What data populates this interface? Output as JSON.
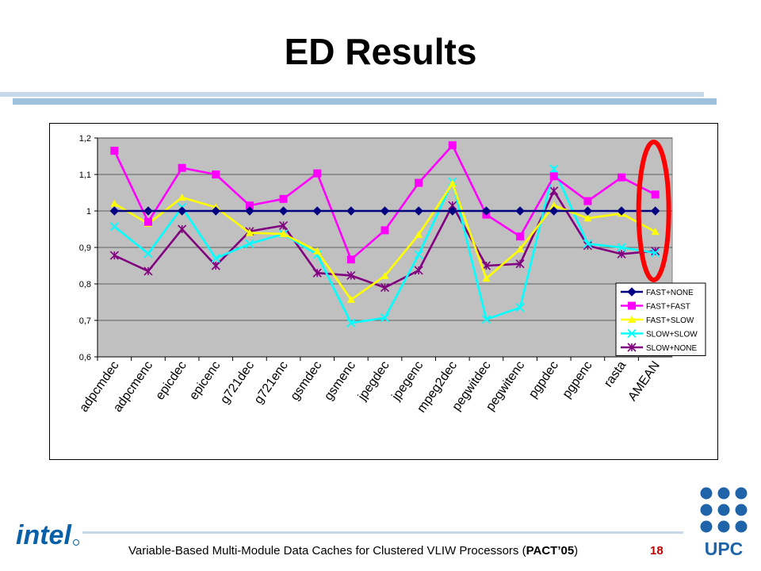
{
  "slide": {
    "title": "ED Results",
    "footer": "Variable-Based Multi-Module Data Caches for Clustered VLIW Processors (",
    "footer_bold": "PACT’05",
    "footer_end": ")",
    "page_number": "18",
    "logo_intel": "intel",
    "logo_upc": "UPC"
  },
  "colors": {
    "plot_bg": "#c0c0c0",
    "highlight_ellipse": "#ff0000",
    "title_bar_light": "#c5d9ea",
    "title_bar_dark": "#9ec1e0",
    "intel_blue": "#0860a8",
    "upc_blue": "#1f63a8"
  },
  "chart_data": {
    "type": "line",
    "title": "",
    "xlabel": "",
    "ylabel": "",
    "ylim": [
      0.6,
      1.2
    ],
    "yticks": [
      "0,6",
      "0,7",
      "0,8",
      "0,9",
      "1",
      "1,1",
      "1,2"
    ],
    "grid": "horizontal",
    "legend_position": "bottom-right inside plot",
    "highlight": "red ellipse around AMEAN",
    "categories": [
      "adpcmdec",
      "adpcmenc",
      "epicdec",
      "epicenc",
      "g721dec",
      "g721enc",
      "gsmdec",
      "gsmenc",
      "jpegdec",
      "jpegenc",
      "mpeg2dec",
      "pegwitdec",
      "pegwitenc",
      "pgpdec",
      "pgpenc",
      "rasta",
      "AMEAN"
    ],
    "series": [
      {
        "name": "FAST+NONE",
        "color": "#000080",
        "marker": "diamond",
        "values": [
          1.0,
          1.0,
          1.0,
          1.0,
          1.0,
          1.0,
          1.0,
          1.0,
          1.0,
          1.0,
          1.0,
          1.0,
          1.0,
          1.0,
          1.0,
          1.0,
          1.0
        ]
      },
      {
        "name": "FAST+FAST",
        "color": "#ff00ff",
        "marker": "square",
        "values": [
          1.165,
          0.97,
          1.118,
          1.1,
          1.015,
          1.033,
          1.103,
          0.867,
          0.947,
          1.077,
          1.18,
          0.99,
          0.93,
          1.095,
          1.027,
          1.092,
          1.045
        ]
      },
      {
        "name": "FAST+SLOW",
        "color": "#ffff00",
        "marker": "triangle",
        "values": [
          1.02,
          0.965,
          1.037,
          1.01,
          0.94,
          0.937,
          0.89,
          0.757,
          0.822,
          0.935,
          1.075,
          0.815,
          0.895,
          1.015,
          0.98,
          0.993,
          0.943
        ]
      },
      {
        "name": "SLOW+SLOW",
        "color": "#00ffff",
        "marker": "x",
        "values": [
          0.957,
          0.883,
          1.01,
          0.87,
          0.91,
          0.937,
          0.88,
          0.693,
          0.707,
          0.88,
          1.08,
          0.703,
          0.735,
          1.115,
          0.91,
          0.9,
          0.885
        ]
      },
      {
        "name": "SLOW+NONE",
        "color": "#800080",
        "marker": "star",
        "values": [
          0.878,
          0.835,
          0.95,
          0.85,
          0.944,
          0.96,
          0.83,
          0.823,
          0.79,
          0.837,
          1.015,
          0.85,
          0.855,
          1.055,
          0.905,
          0.882,
          0.89
        ]
      }
    ]
  }
}
